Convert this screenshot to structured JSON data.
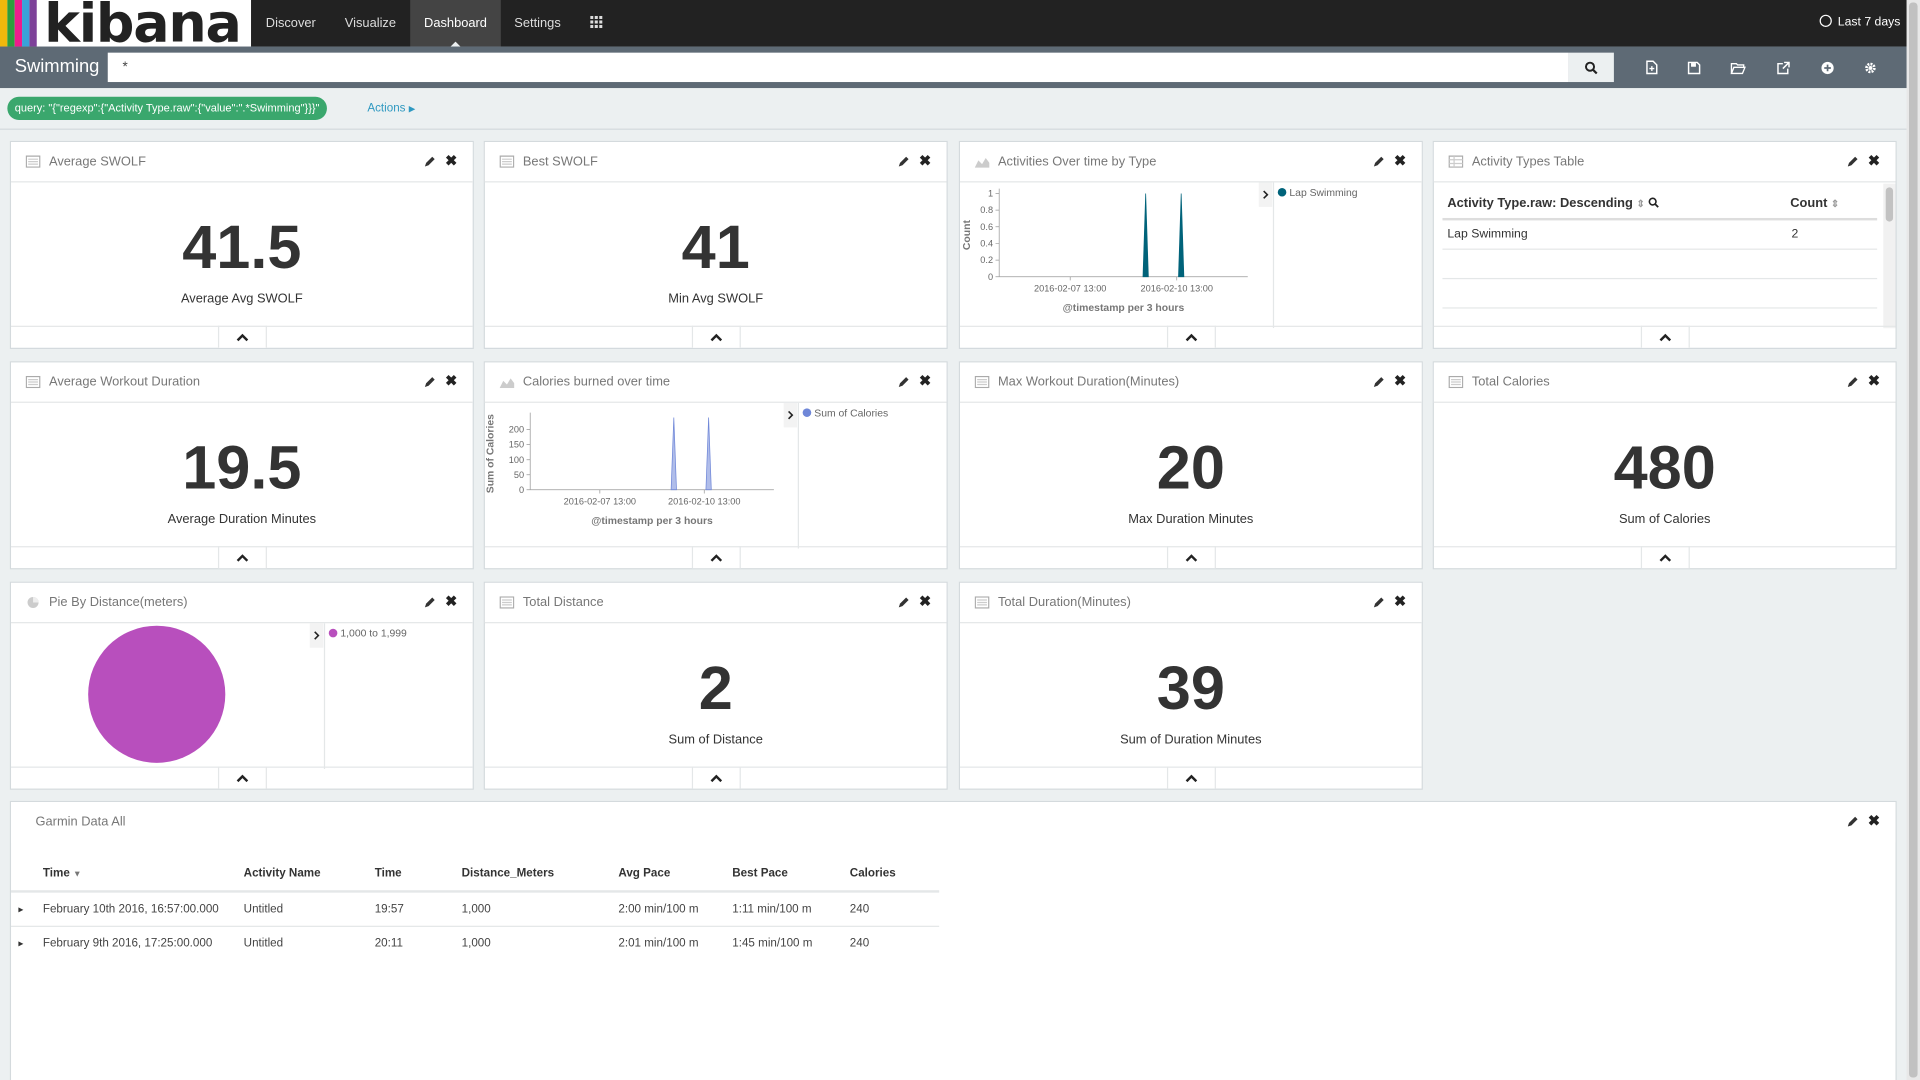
{
  "nav": {
    "logo_text": "kibana",
    "logo_stripe_colors": [
      "#f0b80c",
      "#2e9c3c",
      "#ee1b8c",
      "#3aa2d9",
      "#7d4199"
    ],
    "items": [
      "Discover",
      "Visualize",
      "Dashboard",
      "Settings"
    ],
    "active_item": "Dashboard",
    "apps_icon": "grid-icon",
    "time_range": "Last 7 days"
  },
  "subnav": {
    "dashboard_title": "Swimming",
    "query_value": "*",
    "toolbar_icons": [
      "new-dashboard-icon",
      "save-icon",
      "open-icon",
      "share-icon",
      "add-visualization-icon",
      "options-gear-icon"
    ]
  },
  "filter": {
    "label": "query: \"{\"regexp\":{\"Activity Type.raw\":{\"value\":\".*Swimming\"}}}\"",
    "actions_label": "Actions"
  },
  "panels": {
    "avg_swolf": {
      "title": "Average SWOLF",
      "value": "41.5",
      "label": "Average Avg SWOLF"
    },
    "best_swolf": {
      "title": "Best SWOLF",
      "value": "41",
      "label": "Min Avg SWOLF"
    },
    "activities_over_time": {
      "title": "Activities Over time by Type"
    },
    "activity_types_table": {
      "title": "Activity Types Table",
      "col1": "Activity Type.raw: Descending",
      "col2": "Count",
      "rows": [
        {
          "type": "Lap Swimming",
          "count": "2"
        }
      ]
    },
    "avg_duration": {
      "title": "Average Workout Duration",
      "value": "19.5",
      "label": "Average Duration Minutes"
    },
    "calories_over_time": {
      "title": "Calories burned over time"
    },
    "max_duration": {
      "title": "Max Workout Duration(Minutes)",
      "value": "20",
      "label": "Max Duration Minutes"
    },
    "total_calories": {
      "title": "Total Calories",
      "value": "480",
      "label": "Sum of Calories"
    },
    "pie_distance": {
      "title": "Pie By Distance(meters)",
      "legend": "1,000 to 1,999",
      "color": "#b84fbd"
    },
    "total_distance": {
      "title": "Total Distance",
      "value": "2",
      "label": "Sum of Distance"
    },
    "total_duration": {
      "title": "Total Duration(Minutes)",
      "value": "39",
      "label": "Sum of Duration Minutes"
    },
    "garmin": {
      "title": "Garmin Data All",
      "headers": [
        "Time",
        "Activity Name",
        "Time",
        "Distance_Meters",
        "Avg Pace",
        "Best Pace",
        "Calories"
      ],
      "rows": [
        [
          "February 10th 2016, 16:57:00.000",
          "Untitled",
          "19:57",
          "1,000",
          "2:00 min/100 m",
          "1:11 min/100 m",
          "240"
        ],
        [
          "February 9th 2016, 17:25:00.000",
          "Untitled",
          "20:11",
          "1,000",
          "2:01 min/100 m",
          "1:45 min/100 m",
          "240"
        ]
      ]
    }
  },
  "chart_data": [
    {
      "type": "area",
      "title": "Activities Over time by Type",
      "xlabel": "@timestamp per 3 hours",
      "ylabel": "Count",
      "x_ticks": [
        "2016-02-07 13:00",
        "2016-02-10 13:00"
      ],
      "y_ticks": [
        "0",
        "0.2",
        "0.4",
        "0.6",
        "0.8",
        "1"
      ],
      "ylim": [
        0,
        1
      ],
      "series": [
        {
          "name": "Lap Swimming",
          "color": "#00637a",
          "points": [
            {
              "x": "2016-02-09 16:00",
              "y": 1
            },
            {
              "x": "2016-02-10 16:00",
              "y": 1
            }
          ]
        }
      ],
      "legend": "right"
    },
    {
      "type": "area",
      "title": "Calories burned over time",
      "xlabel": "@timestamp per 3 hours",
      "ylabel": "Sum of Calories",
      "x_ticks": [
        "2016-02-07 13:00",
        "2016-02-10 13:00"
      ],
      "y_ticks": [
        "0",
        "50",
        "100",
        "150",
        "200"
      ],
      "ylim": [
        0,
        240
      ],
      "series": [
        {
          "name": "Sum of Calories",
          "color": "#6f87d8",
          "points": [
            {
              "x": "2016-02-09 16:00",
              "y": 240
            },
            {
              "x": "2016-02-10 16:00",
              "y": 240
            }
          ]
        }
      ],
      "legend": "right"
    },
    {
      "type": "pie",
      "title": "Pie By Distance(meters)",
      "slices": [
        {
          "label": "1,000 to 1,999",
          "value": 2,
          "color": "#b84fbd"
        }
      ]
    }
  ]
}
